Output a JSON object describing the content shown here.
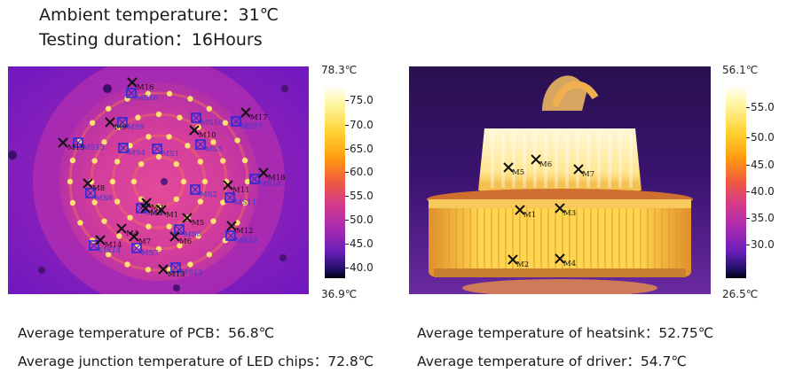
{
  "header": {
    "ambient": "Ambient temperature：31℃",
    "duration": "Testing duration：16Hours"
  },
  "left_image": {
    "max_label": "78.3℃",
    "min_label": "36.9℃",
    "ticks": [
      "75.0",
      "70.0",
      "65.0",
      "60.0",
      "55.0",
      "50.0",
      "45.0",
      "40.0"
    ],
    "markers_m": [
      "M1",
      "M2",
      "M3",
      "M4",
      "M5",
      "M6",
      "M7",
      "M8",
      "M9",
      "M10",
      "M11",
      "M12",
      "M13",
      "M14",
      "M15",
      "M16",
      "M17",
      "M18"
    ],
    "markers_ms": [
      "MS1",
      "MS2",
      "MS3",
      "MS4",
      "MS5",
      "MS6",
      "MS7",
      "MS8",
      "MS9",
      "MS10",
      "MS11",
      "MS12",
      "MS13",
      "MS14",
      "MS15",
      "MS16",
      "MS17",
      "MS18"
    ]
  },
  "right_image": {
    "max_label": "56.1℃",
    "min_label": "26.5℃",
    "ticks": [
      "55.0",
      "50.0",
      "45.0",
      "40.0",
      "35.0",
      "30.0"
    ],
    "markers_m": [
      "M1",
      "M2",
      "M3",
      "M4",
      "M5",
      "M6",
      "M7"
    ]
  },
  "captions": {
    "pcb": "Average temperature of PCB：56.8℃",
    "junction": "Average junction temperature of LED chips：72.8℃",
    "heatsink": "Average temperature of heatsink：52.75℃",
    "driver": "Average temperature of driver：54.7℃"
  },
  "colors": {
    "thermal_background": "#7a1fc0",
    "pcb_core": "#d93aa0",
    "hot": "#ffe070",
    "accent_marker": "#3a3ad0"
  }
}
